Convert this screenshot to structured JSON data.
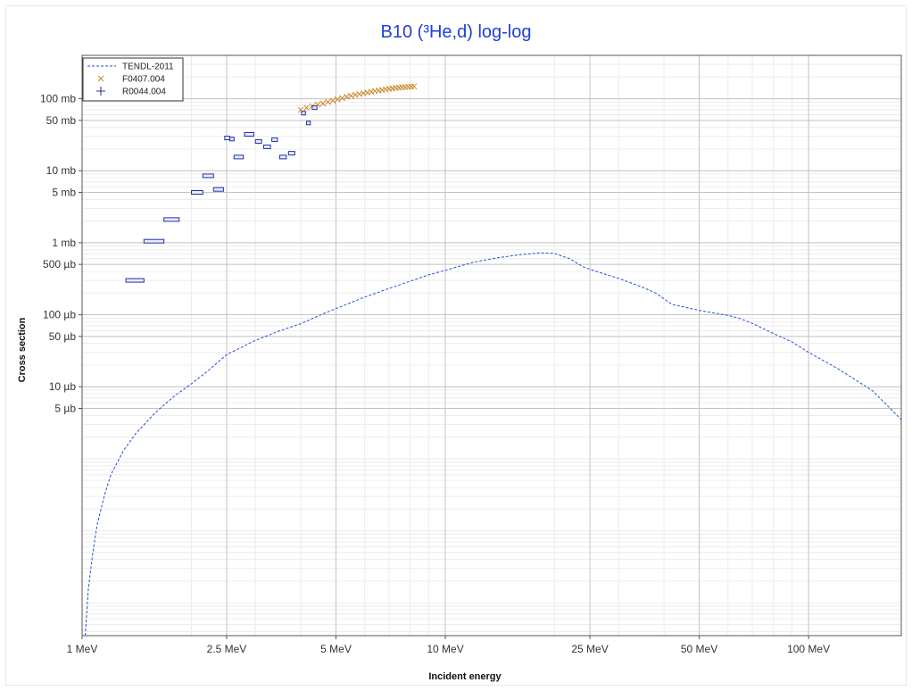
{
  "chart_data": {
    "type": "scatter",
    "title": "B10 (³He,d) log-log",
    "xlabel": "Incident energy",
    "ylabel": "Cross section",
    "x_scale": "log",
    "y_scale": "log",
    "xlim": [
      1,
      180
    ],
    "ylim": [
      3.5e-06,
      400
    ],
    "grid": true,
    "legend_position": "top-left",
    "x_ticks": [
      {
        "v": 1,
        "label": "1 MeV"
      },
      {
        "v": 2.5,
        "label": "2.5 MeV"
      },
      {
        "v": 5,
        "label": "5 MeV"
      },
      {
        "v": 10,
        "label": "10 MeV"
      },
      {
        "v": 25,
        "label": "25 MeV"
      },
      {
        "v": 50,
        "label": "50 MeV"
      },
      {
        "v": 100,
        "label": "100 MeV"
      }
    ],
    "y_ticks": [
      {
        "v": 100,
        "label": "100 mb"
      },
      {
        "v": 50,
        "label": "50 mb"
      },
      {
        "v": 10,
        "label": "10 mb"
      },
      {
        "v": 5,
        "label": "5 mb"
      },
      {
        "v": 1,
        "label": "1 mb"
      },
      {
        "v": 0.5,
        "label": "500 µb"
      },
      {
        "v": 0.1,
        "label": "100 µb"
      },
      {
        "v": 0.05,
        "label": "50 µb"
      },
      {
        "v": 0.01,
        "label": "10 µb"
      },
      {
        "v": 0.005,
        "label": "5 µb"
      }
    ],
    "series": [
      {
        "name": "TENDL-2011",
        "kind": "line",
        "color": "#1f4fd6",
        "x": [
          1.02,
          1.04,
          1.07,
          1.1,
          1.15,
          1.2,
          1.3,
          1.4,
          1.6,
          1.8,
          2.0,
          2.2,
          2.5,
          3.0,
          3.5,
          4.0,
          4.5,
          5.0,
          6.0,
          7.0,
          8.0,
          9.0,
          10.0,
          12.0,
          14.0,
          16.0,
          18.0,
          19.0,
          20.0,
          21.0,
          22.0,
          24.0,
          26.0,
          30.0,
          35.0,
          38.0,
          42.0,
          50.0,
          60.0,
          65.0,
          70.0,
          80.0,
          90.0,
          100.0,
          120.0,
          150.0,
          180.0
        ],
        "y": [
          3.5e-06,
          1.5e-05,
          5e-05,
          0.00012,
          0.0003,
          0.0006,
          0.0013,
          0.0022,
          0.0045,
          0.0075,
          0.011,
          0.016,
          0.028,
          0.044,
          0.06,
          0.075,
          0.098,
          0.122,
          0.176,
          0.232,
          0.292,
          0.358,
          0.414,
          0.54,
          0.62,
          0.68,
          0.72,
          0.72,
          0.71,
          0.65,
          0.6,
          0.46,
          0.4,
          0.32,
          0.24,
          0.2,
          0.14,
          0.115,
          0.098,
          0.088,
          0.076,
          0.055,
          0.042,
          0.03,
          0.018,
          0.0088,
          0.0035
        ]
      },
      {
        "name": "F0407.004",
        "kind": "x-marker",
        "color": "#c8872a",
        "x": [
          4.0,
          4.15,
          4.3,
          4.45,
          4.6,
          4.75,
          4.9,
          5.05,
          5.2,
          5.35,
          5.5,
          5.65,
          5.8,
          5.95,
          6.1,
          6.25,
          6.4,
          6.55,
          6.7,
          6.85,
          7.0,
          7.15,
          7.3,
          7.45,
          7.6,
          7.75,
          7.9,
          8.05,
          8.2
        ],
        "y": [
          70,
          75,
          79,
          83,
          86,
          90,
          94,
          98,
          102,
          106,
          110,
          113,
          116,
          119,
          122,
          125,
          128,
          130,
          132,
          135,
          137,
          139,
          141,
          142,
          144,
          145,
          146,
          147,
          148
        ]
      },
      {
        "name": "R0044.004",
        "kind": "error-box",
        "color": "#1f2f9f",
        "points": [
          {
            "x0": 1.32,
            "x1": 1.48,
            "y": 0.3
          },
          {
            "x0": 1.48,
            "x1": 1.68,
            "y": 1.05
          },
          {
            "x0": 1.68,
            "x1": 1.85,
            "y": 2.1
          },
          {
            "x0": 2.0,
            "x1": 2.15,
            "y": 5.0
          },
          {
            "x0": 2.15,
            "x1": 2.3,
            "y": 8.5
          },
          {
            "x0": 2.3,
            "x1": 2.45,
            "y": 5.5
          },
          {
            "x0": 2.47,
            "x1": 2.55,
            "y": 28.5
          },
          {
            "x0": 2.55,
            "x1": 2.62,
            "y": 27.5
          },
          {
            "x0": 2.62,
            "x1": 2.78,
            "y": 15.5
          },
          {
            "x0": 2.8,
            "x1": 2.97,
            "y": 32.0
          },
          {
            "x0": 3.0,
            "x1": 3.12,
            "y": 25.5
          },
          {
            "x0": 3.16,
            "x1": 3.3,
            "y": 21.5
          },
          {
            "x0": 3.33,
            "x1": 3.45,
            "y": 27.0
          },
          {
            "x0": 3.5,
            "x1": 3.65,
            "y": 15.5
          },
          {
            "x0": 3.7,
            "x1": 3.85,
            "y": 17.5
          },
          {
            "x0": 4.02,
            "x1": 4.12,
            "y": 63.0
          },
          {
            "x0": 4.15,
            "x1": 4.25,
            "y": 46.0
          },
          {
            "x0": 4.3,
            "x1": 4.43,
            "y": 75.0
          }
        ]
      }
    ]
  }
}
